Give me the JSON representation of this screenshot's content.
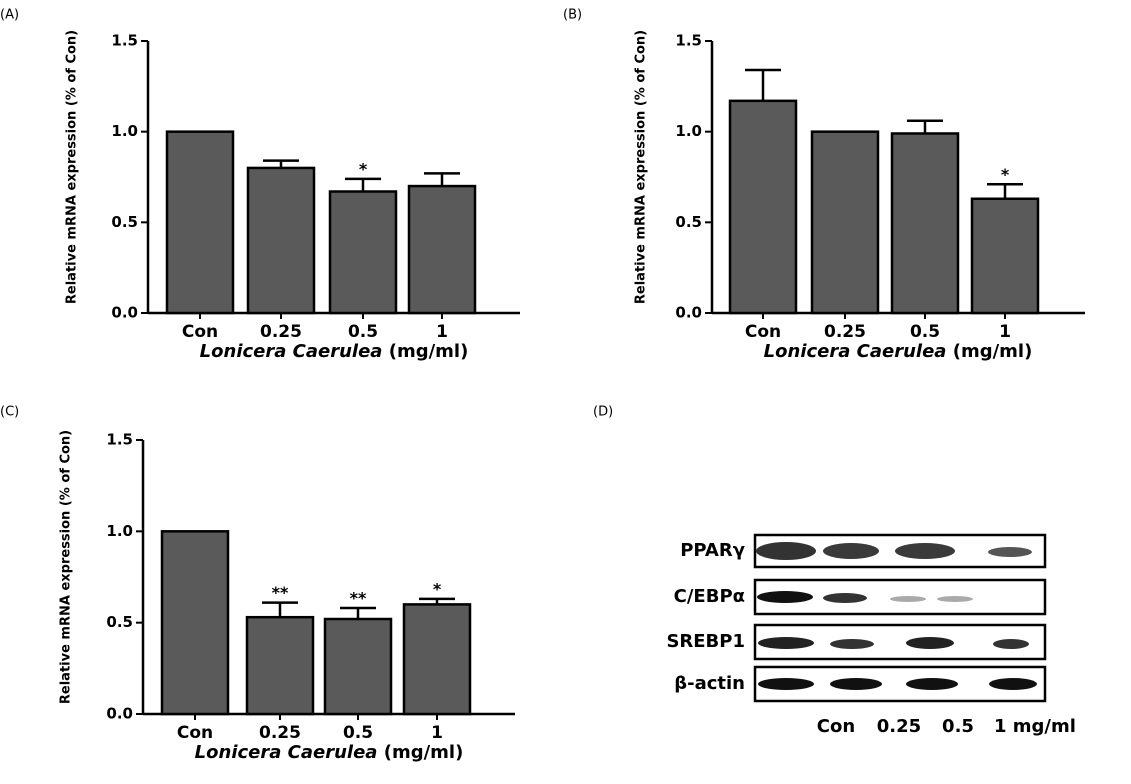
{
  "chart_data": [
    {
      "type": "bar",
      "label": "(A)",
      "ylabel": "Relative mRNA expression (% of Con)",
      "xlabel": {
        "species": "Lonicera Caerulea",
        "unit": "(mg/ml)"
      },
      "categories": [
        "Con",
        "0.25",
        "0.5",
        "1"
      ],
      "values": [
        1.0,
        0.8,
        0.67,
        0.7
      ],
      "errors": [
        null,
        0.04,
        0.07,
        0.07
      ],
      "annotations": [
        null,
        null,
        "*",
        null
      ],
      "color": "#5a5a5a",
      "ylim": [
        0,
        1.5
      ],
      "yticks": [
        {
          "value": 0,
          "label": "0.0"
        },
        0.5,
        {
          "value": 1,
          "label": "1.0"
        },
        1.5
      ]
    },
    {
      "type": "bar",
      "label": "(B)",
      "ylabel": "Relative mRNA expression (% of Con)",
      "xlabel": {
        "species": "Lonicera Caerulea",
        "unit": "(mg/ml)"
      },
      "categories": [
        "Con",
        "0.25",
        "0.5",
        "1"
      ],
      "values": [
        1.17,
        1.0,
        0.99,
        0.63
      ],
      "errors": [
        0.17,
        null,
        0.07,
        0.08
      ],
      "annotations": [
        null,
        null,
        null,
        "*"
      ],
      "color": "#5a5a5a",
      "ylim": [
        0,
        1.5
      ],
      "yticks": [
        {
          "value": 0,
          "label": "0.0"
        },
        0.5,
        {
          "value": 1,
          "label": "1.0"
        },
        1.5
      ]
    },
    {
      "type": "bar",
      "label": "(C)",
      "ylabel": "Relative mRNA expression (% of Con)",
      "xlabel": {
        "species": "Lonicera Caerulea",
        "unit": "(mg/ml)"
      },
      "categories": [
        "Con",
        "0.25",
        "0.5",
        "1"
      ],
      "values": [
        1.0,
        0.53,
        0.52,
        0.6
      ],
      "errors": [
        null,
        0.08,
        0.06,
        0.03
      ],
      "annotations": [
        null,
        "**",
        "**",
        "*"
      ],
      "color": "#5a5a5a",
      "ylim": [
        0,
        1.5
      ],
      "yticks": [
        {
          "value": 0,
          "label": "0.0"
        },
        0.5,
        {
          "value": 1,
          "label": "1.0"
        },
        1.5
      ]
    }
  ],
  "blot": {
    "label": "(D)",
    "rows": [
      "PPARγ",
      "C/EBPα",
      "SREBP1",
      "β-actin"
    ],
    "lanes": [
      "Con",
      "0.25",
      "0.5",
      "1 mg/ml"
    ]
  }
}
